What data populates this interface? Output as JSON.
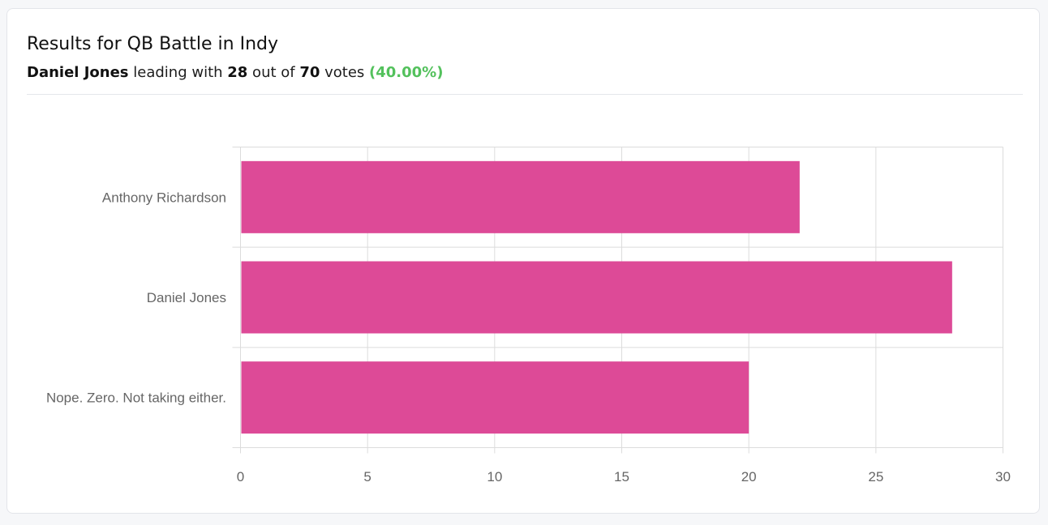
{
  "header": {
    "title": "Results for QB Battle in Indy",
    "leader": "Daniel Jones",
    "text_leading": " leading with ",
    "leader_votes": "28",
    "text_out_of": " out of ",
    "total_votes": "70",
    "text_votes": " votes ",
    "leader_pct": "(40.00%)"
  },
  "colors": {
    "bar": "#dd4a97",
    "percent": "#53c15c",
    "grid": "#dcdcdc",
    "tick_label": "#666666"
  },
  "chart_data": {
    "type": "bar",
    "orientation": "horizontal",
    "categories": [
      "Anthony Richardson",
      "Daniel Jones",
      "Nope. Zero. Not taking either."
    ],
    "values": [
      22,
      28,
      20
    ],
    "xlim": [
      0,
      30
    ],
    "xticks": [
      0,
      5,
      10,
      15,
      20,
      25,
      30
    ],
    "grid": true,
    "title": "",
    "xlabel": "",
    "ylabel": ""
  }
}
